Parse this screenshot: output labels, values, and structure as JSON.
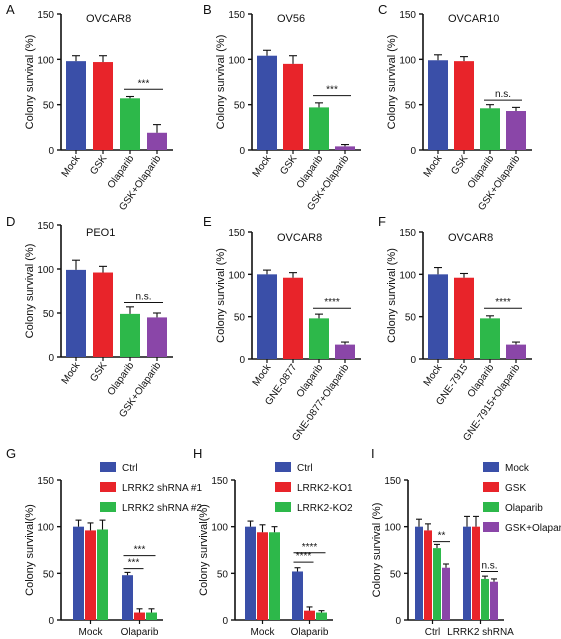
{
  "colors": {
    "blue": "#3a4fa8",
    "red": "#e8242a",
    "green": "#2db84a",
    "purple": "#8a46a8",
    "axis": "#111111"
  },
  "chart_data": [
    {
      "id": "A",
      "panel_letter": "A",
      "title": "OVCAR8",
      "type": "bar",
      "ylabel": "Colony survival (%)",
      "ylim": [
        0,
        150
      ],
      "yticks": [
        0,
        50,
        100,
        150
      ],
      "categories": [
        "Mock",
        "GSK",
        "Olaparib",
        "GSK+Olaparib"
      ],
      "values": [
        98,
        97,
        57,
        19
      ],
      "errors": [
        6,
        7,
        2,
        9
      ],
      "bar_colors": [
        "blue",
        "red",
        "green",
        "purple"
      ],
      "significance": [
        {
          "from": 2,
          "to": 3,
          "label": "***",
          "y": 67
        }
      ]
    },
    {
      "id": "B",
      "panel_letter": "B",
      "title": "OV56",
      "type": "bar",
      "ylabel": "Colony survival (%)",
      "ylim": [
        0,
        150
      ],
      "yticks": [
        0,
        50,
        100,
        150
      ],
      "categories": [
        "Mock",
        "GSK",
        "Olaparib",
        "GSK+Olaparib"
      ],
      "values": [
        104,
        95,
        47,
        4
      ],
      "errors": [
        6,
        9,
        5,
        2
      ],
      "bar_colors": [
        "blue",
        "red",
        "green",
        "purple"
      ],
      "significance": [
        {
          "from": 2,
          "to": 3,
          "label": "***",
          "y": 60
        }
      ]
    },
    {
      "id": "C",
      "panel_letter": "C",
      "title": "OVCAR10",
      "type": "bar",
      "ylabel": "Colony survival (%)",
      "ylim": [
        0,
        150
      ],
      "yticks": [
        0,
        50,
        100,
        150
      ],
      "categories": [
        "Mock",
        "GSK",
        "Olaparib",
        "GSK+Olaparib"
      ],
      "values": [
        99,
        98,
        46,
        43
      ],
      "errors": [
        6,
        5,
        4,
        4
      ],
      "bar_colors": [
        "blue",
        "red",
        "green",
        "purple"
      ],
      "significance": [
        {
          "from": 2,
          "to": 3,
          "label": "n.s.",
          "y": 55
        }
      ]
    },
    {
      "id": "D",
      "panel_letter": "D",
      "title": "PEO1",
      "type": "bar",
      "ylabel": "Colony survival (%)",
      "ylim": [
        0,
        150
      ],
      "yticks": [
        0,
        50,
        100,
        150
      ],
      "categories": [
        "Mock",
        "GSK",
        "Olaparib",
        "GSK+Olaparib"
      ],
      "values": [
        99,
        96,
        49,
        45
      ],
      "errors": [
        11,
        7,
        8,
        5
      ],
      "bar_colors": [
        "blue",
        "red",
        "green",
        "purple"
      ],
      "significance": [
        {
          "from": 2,
          "to": 3,
          "label": "n.s.",
          "y": 62
        }
      ]
    },
    {
      "id": "E",
      "panel_letter": "E",
      "title": "OVCAR8",
      "type": "bar",
      "ylabel": "Colony survival (%)",
      "ylim": [
        0,
        150
      ],
      "yticks": [
        0,
        50,
        100,
        150
      ],
      "categories": [
        "Mock",
        "GNE-0877",
        "Olaparib",
        "GNE-0877+Olaparib"
      ],
      "values": [
        100,
        96,
        48,
        17
      ],
      "errors": [
        5,
        6,
        5,
        3
      ],
      "bar_colors": [
        "blue",
        "red",
        "green",
        "purple"
      ],
      "significance": [
        {
          "from": 2,
          "to": 3,
          "label": "****",
          "y": 60
        }
      ]
    },
    {
      "id": "F",
      "panel_letter": "F",
      "title": "OVCAR8",
      "type": "bar",
      "ylabel": "Colony survival (%)",
      "ylim": [
        0,
        150
      ],
      "yticks": [
        0,
        50,
        100,
        150
      ],
      "categories": [
        "Mock",
        "GNE-7915",
        "Olaparib",
        "GNE-7915+Olaparib"
      ],
      "values": [
        100,
        96,
        48,
        17
      ],
      "errors": [
        8,
        5,
        3,
        3
      ],
      "bar_colors": [
        "blue",
        "red",
        "green",
        "purple"
      ],
      "significance": [
        {
          "from": 2,
          "to": 3,
          "label": "****",
          "y": 60
        }
      ]
    },
    {
      "id": "G",
      "panel_letter": "G",
      "type": "grouped_bar",
      "ylabel": "Colony survival(%)",
      "ylim": [
        0,
        150
      ],
      "yticks": [
        0,
        50,
        100,
        150
      ],
      "categories": [
        "Mock",
        "Olaparib"
      ],
      "series": [
        {
          "name": "Ctrl",
          "color": "blue",
          "values": [
            100,
            48
          ],
          "errors": [
            7,
            3
          ]
        },
        {
          "name": "LRRK2 shRNA #1",
          "color": "red",
          "values": [
            96,
            8
          ],
          "errors": [
            8,
            4
          ]
        },
        {
          "name": "LRRK2 shRNA #2",
          "color": "green",
          "values": [
            97,
            8
          ],
          "errors": [
            10,
            4
          ]
        }
      ],
      "significance": [
        {
          "group": 1,
          "from": 0,
          "to": 2,
          "label": "***",
          "y": 69
        },
        {
          "group": 1,
          "from": 0,
          "to": 1,
          "label": "***",
          "y": 55
        }
      ]
    },
    {
      "id": "H",
      "panel_letter": "H",
      "type": "grouped_bar",
      "ylabel": "Colony survival(%)",
      "ylim": [
        0,
        150
      ],
      "yticks": [
        0,
        50,
        100,
        150
      ],
      "categories": [
        "Mock",
        "Olaparib"
      ],
      "series": [
        {
          "name": "Ctrl",
          "color": "blue",
          "values": [
            100,
            52
          ],
          "errors": [
            6,
            4
          ]
        },
        {
          "name": "LRRK2-KO1",
          "color": "red",
          "values": [
            94,
            10
          ],
          "errors": [
            8,
            4
          ]
        },
        {
          "name": "LRRK2-KO2",
          "color": "green",
          "values": [
            94,
            8
          ],
          "errors": [
            6,
            2
          ]
        }
      ],
      "significance": [
        {
          "group": 1,
          "from": 0,
          "to": 2,
          "label": "****",
          "y": 72
        },
        {
          "group": 1,
          "from": 0,
          "to": 1,
          "label": "****",
          "y": 62
        }
      ]
    },
    {
      "id": "I",
      "panel_letter": "I",
      "type": "grouped_bar",
      "ylabel": "Colony survival (%)",
      "ylim": [
        0,
        150
      ],
      "yticks": [
        0,
        50,
        100,
        150
      ],
      "categories": [
        "Ctrl",
        "LRRK2 shRNA"
      ],
      "series": [
        {
          "name": "Mock",
          "color": "blue",
          "values": [
            100,
            100
          ],
          "errors": [
            8,
            11
          ]
        },
        {
          "name": "GSK",
          "color": "red",
          "values": [
            96,
            100
          ],
          "errors": [
            7,
            11
          ]
        },
        {
          "name": "Olaparib",
          "color": "green",
          "values": [
            77,
            44
          ],
          "errors": [
            4,
            3
          ]
        },
        {
          "name": "GSK+Olaparib",
          "color": "purple",
          "values": [
            56,
            41
          ],
          "errors": [
            4,
            3
          ]
        }
      ],
      "significance": [
        {
          "group": 0,
          "from": 2,
          "to": 3,
          "label": "**",
          "y": 84
        },
        {
          "group": 1,
          "from": 2,
          "to": 3,
          "label": "n.s.",
          "y": 52
        }
      ]
    }
  ]
}
